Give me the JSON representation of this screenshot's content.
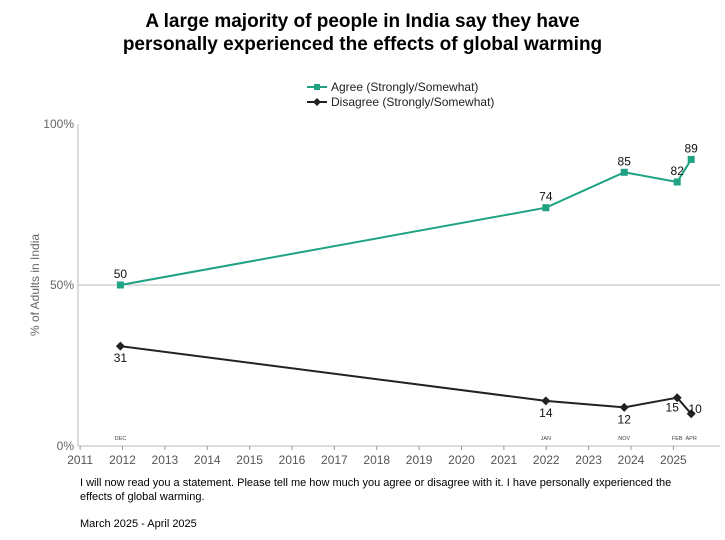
{
  "title_line1": "A large majority of people in India say they have",
  "title_line2": "personally experienced the effects of global warming",
  "footnote": "I will now read you a statement. Please tell me how much you agree or disagree with it. I have personally experienced the effects of global warming.",
  "date_range": "March 2025 - April 2025",
  "chart_data": {
    "type": "line",
    "title": "A large majority of people in India say they have personally experienced the effects of global warming",
    "ylabel": "% of Adults in India",
    "xlabel": "",
    "ylim": [
      0,
      100
    ],
    "xlim": [
      2010.95,
      2026.1
    ],
    "y_ticks": [
      "0%",
      "50%",
      "100%"
    ],
    "x_ticks": [
      "2011",
      "2012",
      "2013",
      "2014",
      "2015",
      "2016",
      "2017",
      "2018",
      "2019",
      "2020",
      "2021",
      "2022",
      "2023",
      "2024",
      "2025"
    ],
    "x": [
      2011.95,
      2021.99,
      2023.84,
      2025.09,
      2025.42
    ],
    "month_labels": [
      "DEC",
      "JAN",
      "NOV",
      "FEB",
      "APR"
    ],
    "legend_position": "top-center",
    "series": [
      {
        "name": "Agree (Strongly/Somewhat)",
        "color": "#1fa383",
        "marker": "square",
        "values": [
          50,
          74,
          85,
          82,
          89
        ]
      },
      {
        "name": "Disagree (Strongly/Somewhat)",
        "color": "#222222",
        "marker": "diamond",
        "values": [
          31,
          14,
          12,
          15,
          10
        ]
      }
    ]
  }
}
